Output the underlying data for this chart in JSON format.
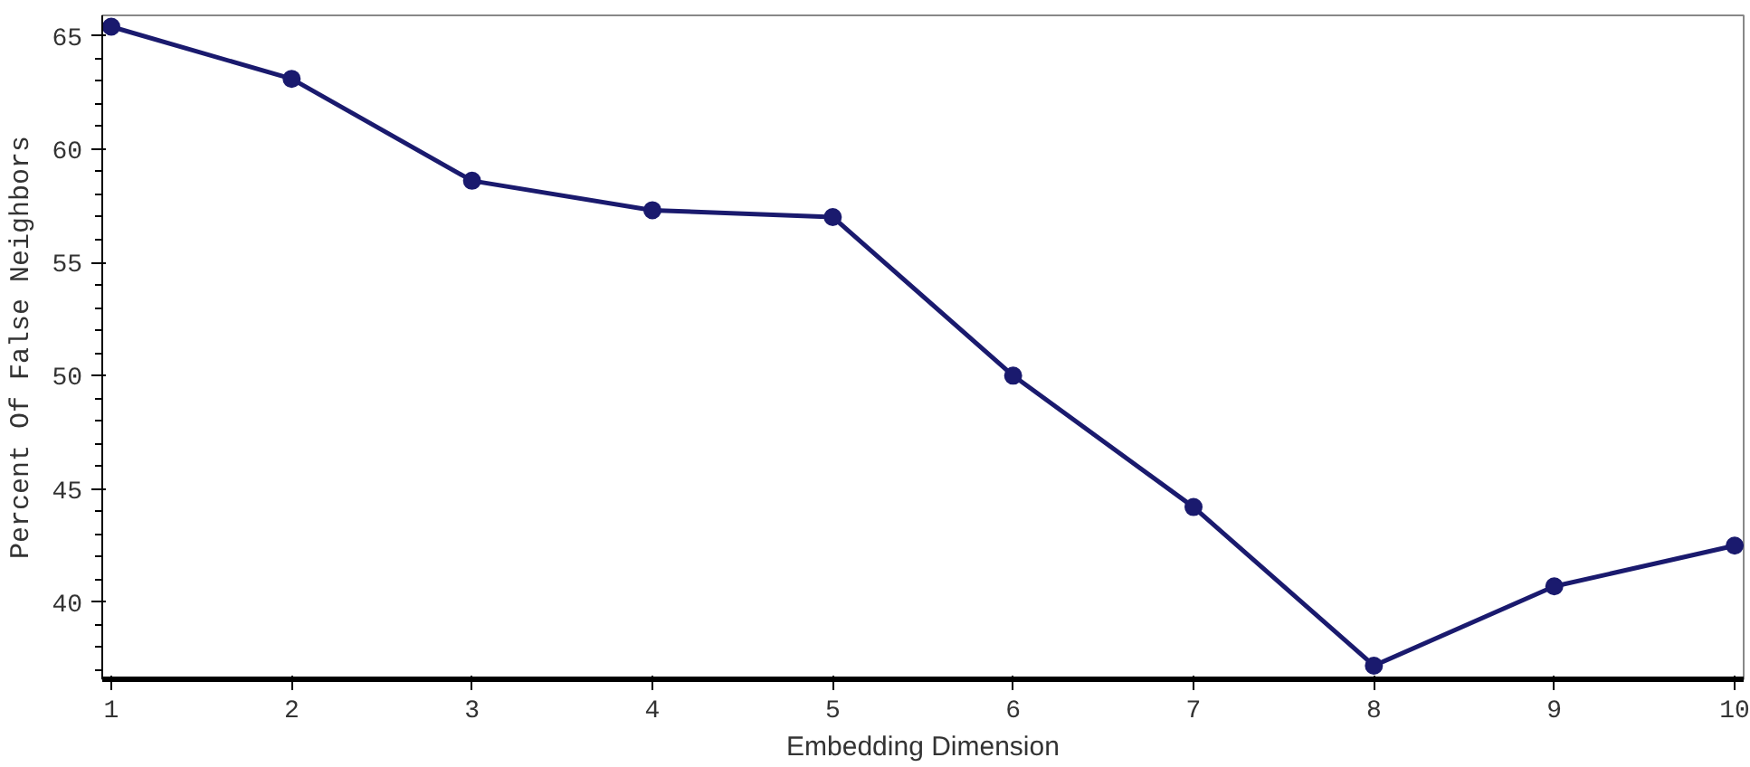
{
  "chart_data": {
    "type": "line",
    "xlabel": "Embedding Dimension",
    "ylabel": "Percent Of False Neighbors",
    "x": [
      1,
      2,
      3,
      4,
      5,
      6,
      7,
      8,
      9,
      10
    ],
    "series": [
      {
        "color": "#1a1a6e",
        "values": [
          65.4,
          63.1,
          58.6,
          57.3,
          57.0,
          50.0,
          44.2,
          37.2,
          40.7,
          42.5
        ]
      }
    ],
    "xlim": [
      0.95,
      10.05
    ],
    "xticks": [
      1,
      2,
      3,
      4,
      5,
      6,
      7,
      8,
      9,
      10
    ],
    "ylim": [
      36.6,
      65.9
    ],
    "yticks": [
      40,
      45,
      50,
      55,
      60,
      65
    ],
    "marker": "circle",
    "line_style": "solid"
  }
}
